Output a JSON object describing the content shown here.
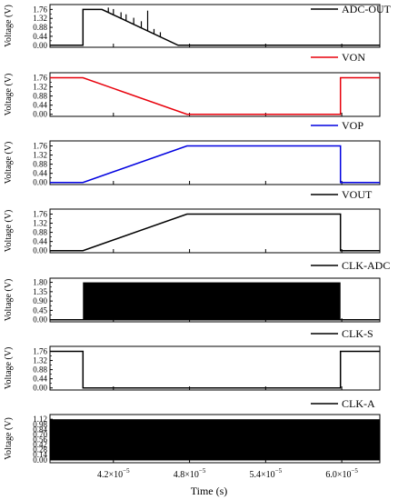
{
  "chart_data": {
    "type": "line",
    "xlabel": "Time (s)",
    "xlim": [
      3.7e-05,
      6.3e-05
    ],
    "xticks": [
      4.2e-05,
      4.8e-05,
      5.4e-05,
      6e-05
    ],
    "xtick_labels": [
      {
        "mantissa": "4.2×10",
        "exponent": "−5"
      },
      {
        "mantissa": "4.8×10",
        "exponent": "−5"
      },
      {
        "mantissa": "5.4×10",
        "exponent": "−5"
      },
      {
        "mantissa": "6.0×10",
        "exponent": "−5"
      }
    ],
    "panels": [
      {
        "name": "ADC-OUT",
        "color": "#000000",
        "ylabel": "Voltage (V)",
        "ylim": [
          -0.1,
          2.0
        ],
        "yticks": [
          0.0,
          0.44,
          0.88,
          1.32,
          1.76
        ],
        "ytick_labels": [
          "0.00",
          "0.44",
          "0.88",
          "1.32",
          "1.76"
        ],
        "x": [
          3.7e-05,
          3.96e-05,
          3.96e-05,
          4.11e-05,
          4.71e-05,
          4.71e-05,
          6.3e-05
        ],
        "y": [
          0.0,
          0.0,
          1.76,
          1.76,
          0.0,
          0.0,
          0.0
        ],
        "spikes": [
          {
            "x": 4.16e-05,
            "y": 1.85
          },
          {
            "x": 4.2e-05,
            "y": 1.78
          },
          {
            "x": 4.26e-05,
            "y": 1.62
          },
          {
            "x": 4.3e-05,
            "y": 1.52
          },
          {
            "x": 4.36e-05,
            "y": 1.35
          },
          {
            "x": 4.42e-05,
            "y": 1.18
          },
          {
            "x": 4.47e-05,
            "y": 1.7
          },
          {
            "x": 4.52e-05,
            "y": 0.8
          },
          {
            "x": 4.57e-05,
            "y": 0.64
          }
        ]
      },
      {
        "name": "VON",
        "color": "#e8000b",
        "ylabel": "Voltage (V)",
        "ylim": [
          -0.1,
          2.0
        ],
        "yticks": [
          0.0,
          0.44,
          0.88,
          1.32,
          1.76
        ],
        "ytick_labels": [
          "0.00",
          "0.44",
          "0.88",
          "1.32",
          "1.76"
        ],
        "x": [
          3.7e-05,
          3.96e-05,
          4.78e-05,
          5.99e-05,
          5.99e-05,
          6.3e-05
        ],
        "y": [
          1.76,
          1.76,
          0.0,
          0.0,
          1.76,
          1.76
        ]
      },
      {
        "name": "VOP",
        "color": "#0000e0",
        "ylabel": "Voltage (V)",
        "ylim": [
          -0.1,
          2.0
        ],
        "yticks": [
          0.0,
          0.44,
          0.88,
          1.32,
          1.76
        ],
        "ytick_labels": [
          "0.00",
          "0.44",
          "0.88",
          "1.32",
          "1.76"
        ],
        "x": [
          3.7e-05,
          3.96e-05,
          4.78e-05,
          5.99e-05,
          5.99e-05,
          6.3e-05
        ],
        "y": [
          0.0,
          0.0,
          1.76,
          1.76,
          0.0,
          0.0
        ]
      },
      {
        "name": "VOUT",
        "color": "#000000",
        "ylabel": "Voltage (V)",
        "ylim": [
          -0.1,
          2.0
        ],
        "yticks": [
          0.0,
          0.44,
          0.88,
          1.32,
          1.76
        ],
        "ytick_labels": [
          "0.00",
          "0.44",
          "0.88",
          "1.32",
          "1.76"
        ],
        "x": [
          3.7e-05,
          3.96e-05,
          4.78e-05,
          5.99e-05,
          5.99e-05,
          6.3e-05
        ],
        "y": [
          0.0,
          0.0,
          1.76,
          1.76,
          0.0,
          0.0
        ]
      },
      {
        "name": "CLK-ADC",
        "color": "#000000",
        "ylabel": "Voltage (V)",
        "ylim": [
          -0.1,
          2.0
        ],
        "yticks": [
          0.0,
          0.45,
          0.9,
          1.35,
          1.8
        ],
        "ytick_labels": [
          "0.00",
          "0.45",
          "0.90",
          "1.35",
          "1.80"
        ],
        "x": [
          3.7e-05,
          3.96e-05,
          5.99e-05,
          6.3e-05
        ],
        "y": [
          0.0,
          0.0,
          0.0,
          0.0
        ],
        "pulse_band": {
          "x_start": 3.96e-05,
          "x_end": 5.99e-05,
          "low": 0.0,
          "high": 1.8
        }
      },
      {
        "name": "CLK-S",
        "color": "#000000",
        "ylabel": "Voltage (V)",
        "ylim": [
          -0.1,
          2.0
        ],
        "yticks": [
          0.0,
          0.44,
          0.88,
          1.32,
          1.76
        ],
        "ytick_labels": [
          "0.00",
          "0.44",
          "0.88",
          "1.32",
          "1.76"
        ],
        "x": [
          3.7e-05,
          3.96e-05,
          3.96e-05,
          5.99e-05,
          5.99e-05,
          6.3e-05
        ],
        "y": [
          1.76,
          1.76,
          0.0,
          0.0,
          1.76,
          1.76
        ]
      },
      {
        "name": "CLK-A",
        "color": "#000000",
        "ylabel": "Voltage (V)",
        "ylim": [
          -0.08,
          1.25
        ],
        "yticks": [
          0.0,
          0.14,
          0.28,
          0.42,
          0.56,
          0.7,
          0.84,
          0.98,
          1.12
        ],
        "ytick_labels": [
          "0.00",
          "0.14",
          "0.28",
          "0.42",
          "0.56",
          "0.70",
          "0.84",
          "0.98",
          "1.12"
        ],
        "x": [
          3.7e-05,
          6.3e-05
        ],
        "y": [
          0.0,
          0.0
        ],
        "pulse_band": {
          "x_start": 3.7e-05,
          "x_end": 6.3e-05,
          "low": 0.0,
          "high": 1.12
        }
      }
    ]
  }
}
